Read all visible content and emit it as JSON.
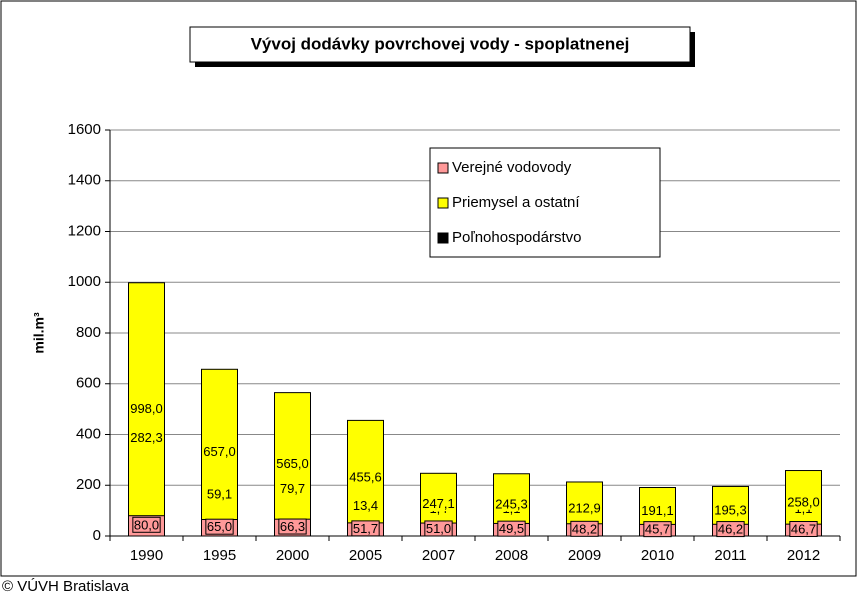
{
  "chart_data": {
    "type": "stacked_bar",
    "title": "Vývoj dodávky povrchovej vody - spoplatnenej",
    "y_label": "mil.m³",
    "footer": "© VÚVH Bratislava",
    "categories": [
      "1990",
      "1995",
      "2000",
      "2005",
      "2007",
      "2008",
      "2009",
      "2010",
      "2011",
      "2012"
    ],
    "series": [
      {
        "name": "Poľnohospodárstvo",
        "color": "#000000",
        "values": [
          282.3,
          59.1,
          79.7,
          13.4,
          1.4,
          1.1,
          0.8,
          1.0,
          1.1,
          1.1
        ],
        "value_labels": [
          "282,3",
          "59,1",
          "79,7",
          "13,4",
          "1,4",
          "1,1",
          "0,8",
          "1,0",
          "1,1",
          "1,1"
        ]
      },
      {
        "name": "Priemysel a ostatní",
        "color": "#ffff00",
        "values": [
          998.0,
          657.0,
          565.0,
          455.6,
          247.1,
          245.3,
          212.9,
          191.1,
          195.3,
          258.0
        ],
        "value_labels": [
          "998,0",
          "657,0",
          "565,0",
          "455,6",
          "247,1",
          "245,3",
          "212,9",
          "191,1",
          "195,3",
          "258,0"
        ]
      },
      {
        "name": "Verejné vodovody",
        "color": "#ff9999",
        "values": [
          80.0,
          65.0,
          66.3,
          51.7,
          51.0,
          49.5,
          48.2,
          45.7,
          46.2,
          46.7
        ],
        "value_labels": [
          "80,0",
          "65,0",
          "66,3",
          "51,7",
          "51,0",
          "49,5",
          "48,2",
          "45,7",
          "46,2",
          "46,7"
        ]
      }
    ],
    "ylim": [
      0,
      1600
    ],
    "yticks": [
      0,
      200,
      400,
      600,
      800,
      1000,
      1200,
      1400,
      1600
    ],
    "grid": true,
    "legend": "top-right"
  }
}
